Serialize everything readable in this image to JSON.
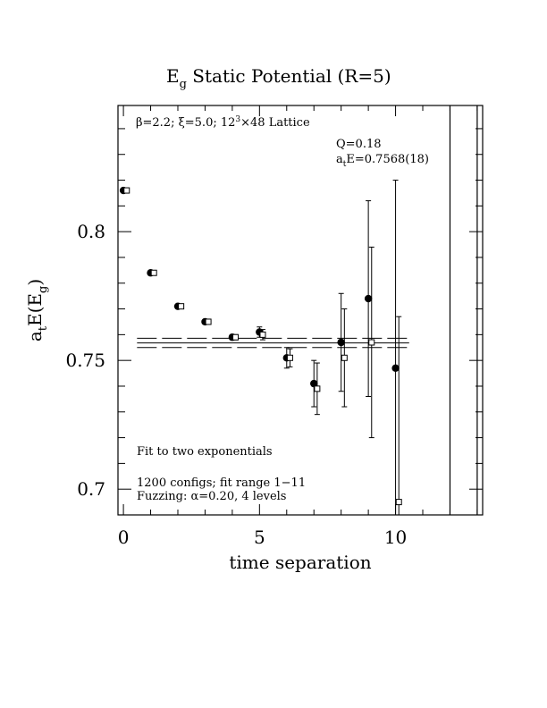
{
  "chart_data": {
    "type": "scatter",
    "title": "E",
    "title_sub": "g",
    "title_rest": " Static Potential (R=5)",
    "xlabel": "time separation",
    "ylabel": {
      "a": "a",
      "a_sub": "t",
      "mid": "E(E",
      "mid_sub": "g",
      "end": ")"
    },
    "xlim": [
      -0.2,
      13.2
    ],
    "ylim": [
      0.69,
      0.849
    ],
    "x_ticks": [
      0,
      5,
      10
    ],
    "x_tick_labels": [
      "0",
      "5",
      "10"
    ],
    "y_ticks": [
      0.7,
      0.75,
      0.8
    ],
    "y_tick_labels": [
      "0.7",
      "0.75",
      "0.8"
    ],
    "annotations": {
      "params_beta": "β=2.2; ",
      "params_xi": "ξ=5.0; 12",
      "params_sup": "3",
      "params_rest": "×48 Lattice",
      "q": "Q=0.18",
      "fit_a": "a",
      "fit_sub": "t",
      "fit_rest": "E=0.7568(18)",
      "fit_type": "Fit to two exponentials",
      "configs": "1200 configs; fit range 1−11",
      "fuzz_pre": "Fuzzing: ",
      "fuzz_alpha": "α",
      "fuzz_post": "=0.20, 4 levels"
    },
    "fit": {
      "value": 0.7568,
      "error": 0.0018,
      "x_range": [
        0.5,
        10.5
      ]
    },
    "vertical_lines": [
      12.0,
      13.0
    ],
    "series": [
      {
        "marker": "filled-circle",
        "x": [
          0,
          1,
          2,
          3,
          4,
          5,
          6,
          7,
          8,
          9,
          10
        ],
        "y": [
          0.816,
          0.784,
          0.771,
          0.765,
          0.759,
          0.761,
          0.751,
          0.741,
          0.757,
          0.774,
          0.747
        ],
        "err": [
          0.0005,
          0.0006,
          0.0007,
          0.0008,
          0.001,
          0.002,
          0.004,
          0.009,
          0.019,
          0.038,
          0.073
        ]
      },
      {
        "marker": "open-square",
        "x": [
          0.12,
          1.12,
          2.12,
          3.12,
          4.12,
          5.12,
          6.12,
          7.12,
          8.12,
          9.12,
          10.12
        ],
        "y": [
          0.816,
          0.784,
          0.771,
          0.765,
          0.759,
          0.76,
          0.751,
          0.739,
          0.751,
          0.757,
          0.695
        ],
        "err": [
          0.0005,
          0.0006,
          0.0007,
          0.0008,
          0.001,
          0.002,
          0.0035,
          0.01,
          0.019,
          0.037,
          0.072
        ]
      }
    ]
  }
}
